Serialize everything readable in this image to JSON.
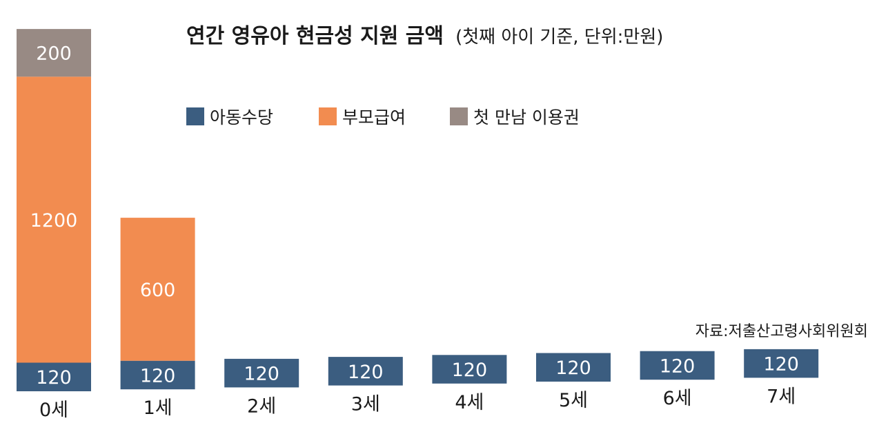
{
  "chart_data": {
    "type": "bar",
    "stacked": true,
    "title": "연간 영유아 현금성 지원 금액",
    "subtitle": "(첫째 아이 기준, 단위:만원)",
    "source": "자료:저출산고령사회위원회",
    "categories": [
      "0세",
      "1세",
      "2세",
      "3세",
      "4세",
      "5세",
      "6세",
      "7세"
    ],
    "series": [
      {
        "name": "아동수당",
        "color": "#3b5d80",
        "values": [
          120,
          120,
          120,
          120,
          120,
          120,
          120,
          120
        ]
      },
      {
        "name": "부모급여",
        "color": "#f28c50",
        "values": [
          1200,
          600,
          0,
          0,
          0,
          0,
          0,
          0
        ]
      },
      {
        "name": "첫 만남 이용권",
        "color": "#988a84",
        "values": [
          200,
          0,
          0,
          0,
          0,
          0,
          0,
          0
        ]
      }
    ],
    "ylim": [
      0,
      1520
    ],
    "grid": false,
    "legend": "top"
  }
}
